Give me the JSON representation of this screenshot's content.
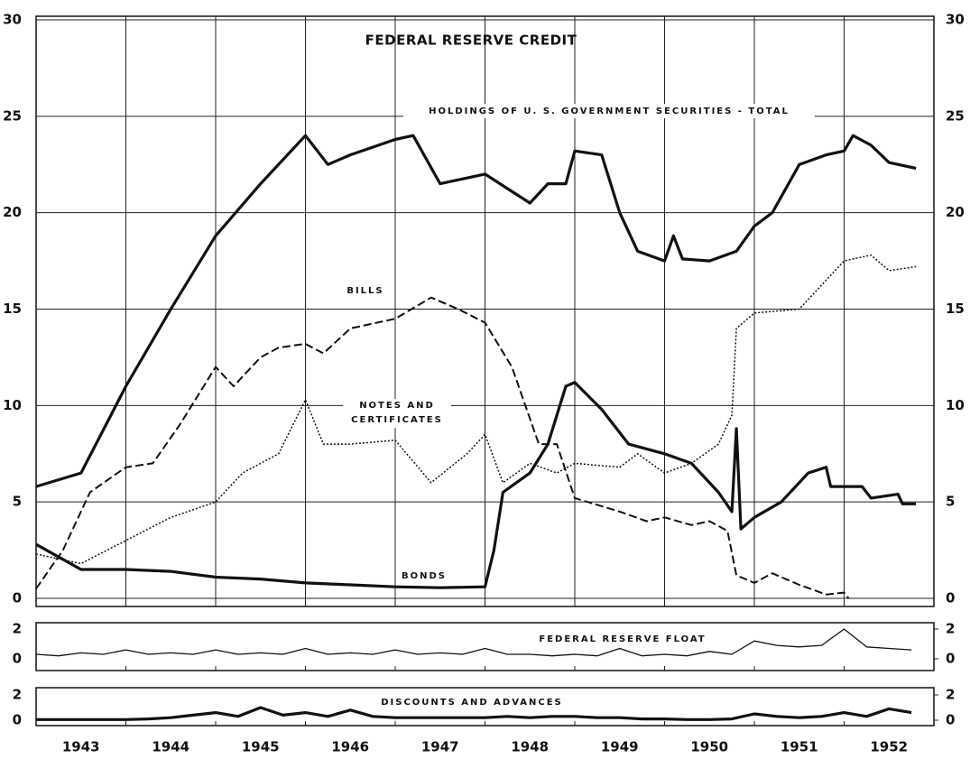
{
  "chart_data": [
    {
      "type": "line",
      "title": "FEDERAL RESERVE CREDIT",
      "xlim": [
        1943,
        1953
      ],
      "ylim": [
        0,
        30
      ],
      "yticks": [
        0,
        5,
        10,
        15,
        20,
        25,
        30
      ],
      "xgrid": [
        1944,
        1945,
        1946,
        1947,
        1948,
        1949,
        1950,
        1951,
        1952
      ],
      "grid": true,
      "series": [
        {
          "name": "HOLDINGS OF U. S. GOVERNMENT SECURITIES - TOTAL",
          "color": "#111111",
          "line_style": "solid-thick",
          "x": [
            1943.0,
            1943.5,
            1944.0,
            1944.5,
            1945.0,
            1945.5,
            1946.0,
            1946.25,
            1946.5,
            1947.0,
            1947.2,
            1947.5,
            1948.0,
            1948.5,
            1948.7,
            1948.9,
            1949.0,
            1949.3,
            1949.5,
            1949.7,
            1950.0,
            1950.1,
            1950.2,
            1950.5,
            1950.8,
            1951.0,
            1951.2,
            1951.5,
            1951.8,
            1952.0,
            1952.1,
            1952.3,
            1952.5,
            1952.8
          ],
          "values": [
            5.8,
            6.5,
            11,
            15,
            18.8,
            21.5,
            24,
            22.5,
            23,
            23.8,
            24,
            21.5,
            22,
            20.5,
            21.5,
            21.5,
            23.2,
            23,
            20,
            18,
            17.5,
            18.8,
            17.6,
            17.5,
            18,
            19.3,
            20,
            22.5,
            23,
            23.2,
            24,
            23.5,
            22.6,
            22.3
          ]
        },
        {
          "name": "BILLS",
          "color": "#111111",
          "line_style": "dashed",
          "x": [
            1943.0,
            1943.3,
            1943.6,
            1944.0,
            1944.3,
            1944.6,
            1945.0,
            1945.2,
            1945.5,
            1945.7,
            1946.0,
            1946.2,
            1946.5,
            1947.0,
            1947.4,
            1947.7,
            1948.0,
            1948.3,
            1948.6,
            1948.8,
            1949.0,
            1949.5,
            1949.8,
            1950.0,
            1950.3,
            1950.5,
            1950.7,
            1950.8,
            1951.0,
            1951.2,
            1951.5,
            1951.8,
            1952.0,
            1952.05
          ],
          "values": [
            0.5,
            2.5,
            5.5,
            6.8,
            7,
            9,
            12,
            11,
            12.5,
            13,
            13.2,
            12.7,
            14,
            14.5,
            15.6,
            15,
            14.3,
            12,
            8,
            8,
            5.2,
            4.5,
            4,
            4.2,
            3.8,
            4,
            3.5,
            1.2,
            0.8,
            1.3,
            0.7,
            0.2,
            0.3,
            0
          ]
        },
        {
          "name": "NOTES AND CERTIFICATES",
          "color": "#111111",
          "line_style": "dotted",
          "x": [
            1943.0,
            1943.5,
            1944.0,
            1944.5,
            1945.0,
            1945.3,
            1945.7,
            1946.0,
            1946.2,
            1946.5,
            1947.0,
            1947.4,
            1947.8,
            1948.0,
            1948.2,
            1948.5,
            1948.8,
            1949.0,
            1949.5,
            1949.7,
            1950.0,
            1950.3,
            1950.6,
            1950.75,
            1950.8,
            1951.0,
            1951.5,
            1951.8,
            1952.0,
            1952.3,
            1952.5,
            1952.8
          ],
          "values": [
            2.3,
            1.8,
            3,
            4.2,
            5,
            6.5,
            7.5,
            10.3,
            8,
            8,
            8.2,
            6,
            7.5,
            8.5,
            6,
            7,
            6.5,
            7,
            6.8,
            7.5,
            6.5,
            7,
            8,
            9.5,
            14,
            14.8,
            15,
            16.5,
            17.5,
            17.8,
            17,
            17.2
          ]
        },
        {
          "name": "BONDS",
          "color": "#111111",
          "line_style": "solid-thick",
          "x": [
            1943.0,
            1943.5,
            1944.0,
            1944.5,
            1945.0,
            1945.5,
            1946.0,
            1946.5,
            1947.0,
            1947.5,
            1948.0,
            1948.1,
            1948.2,
            1948.5,
            1948.7,
            1948.9,
            1949.0,
            1949.3,
            1949.6,
            1950.0,
            1950.3,
            1950.6,
            1950.75,
            1950.8,
            1950.85,
            1951.0,
            1951.3,
            1951.6,
            1951.8,
            1951.85,
            1952.2,
            1952.3,
            1952.6,
            1952.65,
            1952.8
          ],
          "values": [
            2.8,
            1.5,
            1.5,
            1.4,
            1.1,
            1.0,
            0.8,
            0.7,
            0.6,
            0.55,
            0.6,
            2.5,
            5.5,
            6.5,
            8,
            11,
            11.2,
            9.8,
            8,
            7.5,
            7,
            5.5,
            4.5,
            8.8,
            3.6,
            4.2,
            5,
            6.5,
            6.8,
            5.8,
            5.8,
            5.2,
            5.4,
            4.9,
            4.9
          ]
        }
      ]
    },
    {
      "type": "line",
      "title": "FEDERAL RESERVE FLOAT",
      "xlim": [
        1943,
        1953
      ],
      "ylim": [
        0,
        2
      ],
      "yticks": [
        0,
        2
      ],
      "color": "#111111",
      "line_style": "solid-thin",
      "xgrid": [
        1944,
        1945,
        1946,
        1947,
        1948,
        1949,
        1950,
        1951,
        1952
      ],
      "grid": false,
      "x": [
        1943.0,
        1943.25,
        1943.5,
        1943.75,
        1944.0,
        1944.25,
        1944.5,
        1944.75,
        1945.0,
        1945.25,
        1945.5,
        1945.75,
        1946.0,
        1946.25,
        1946.5,
        1946.75,
        1947.0,
        1947.25,
        1947.5,
        1947.75,
        1948.0,
        1948.25,
        1948.5,
        1948.75,
        1949.0,
        1949.25,
        1949.5,
        1949.75,
        1950.0,
        1950.25,
        1950.5,
        1950.75,
        1951.0,
        1951.25,
        1951.5,
        1951.75,
        1952.0,
        1952.25,
        1952.5,
        1952.75
      ],
      "values": [
        0.3,
        0.2,
        0.4,
        0.3,
        0.6,
        0.3,
        0.4,
        0.3,
        0.6,
        0.3,
        0.4,
        0.3,
        0.7,
        0.3,
        0.4,
        0.3,
        0.6,
        0.3,
        0.4,
        0.3,
        0.7,
        0.3,
        0.3,
        0.2,
        0.3,
        0.2,
        0.7,
        0.2,
        0.3,
        0.2,
        0.5,
        0.3,
        1.2,
        0.9,
        0.8,
        0.9,
        2.0,
        0.8,
        0.7,
        0.6
      ]
    },
    {
      "type": "line",
      "title": "DISCOUNTS AND ADVANCES",
      "xlim": [
        1943,
        1953
      ],
      "ylim": [
        0,
        2
      ],
      "yticks": [
        0,
        2
      ],
      "color": "#111111",
      "line_style": "solid-thick",
      "xgrid": [
        1944,
        1945,
        1946,
        1947,
        1948,
        1949,
        1950,
        1951,
        1952
      ],
      "grid": false,
      "xticks": [
        {
          "value": 1943.5,
          "label": "1943"
        },
        {
          "value": 1944.5,
          "label": "1944"
        },
        {
          "value": 1945.5,
          "label": "1945"
        },
        {
          "value": 1946.5,
          "label": "1946"
        },
        {
          "value": 1947.5,
          "label": "1947"
        },
        {
          "value": 1948.5,
          "label": "1948"
        },
        {
          "value": 1949.5,
          "label": "1949"
        },
        {
          "value": 1950.5,
          "label": "1950"
        },
        {
          "value": 1951.5,
          "label": "1951"
        },
        {
          "value": 1952.5,
          "label": "1952"
        }
      ],
      "x": [
        1943.0,
        1943.25,
        1943.5,
        1943.75,
        1944.0,
        1944.25,
        1944.5,
        1944.75,
        1945.0,
        1945.25,
        1945.5,
        1945.75,
        1946.0,
        1946.25,
        1946.5,
        1946.75,
        1947.0,
        1947.25,
        1947.5,
        1947.75,
        1948.0,
        1948.25,
        1948.5,
        1948.75,
        1949.0,
        1949.25,
        1949.5,
        1949.75,
        1950.0,
        1950.25,
        1950.5,
        1950.75,
        1951.0,
        1951.25,
        1951.5,
        1951.75,
        1952.0,
        1952.25,
        1952.5,
        1952.75
      ],
      "values": [
        0.05,
        0.05,
        0.05,
        0.05,
        0.05,
        0.1,
        0.2,
        0.4,
        0.6,
        0.3,
        1.0,
        0.4,
        0.6,
        0.3,
        0.8,
        0.3,
        0.2,
        0.2,
        0.2,
        0.2,
        0.2,
        0.3,
        0.2,
        0.3,
        0.3,
        0.2,
        0.2,
        0.1,
        0.1,
        0.05,
        0.05,
        0.1,
        0.5,
        0.3,
        0.2,
        0.3,
        0.6,
        0.3,
        0.9,
        0.6
      ]
    }
  ]
}
